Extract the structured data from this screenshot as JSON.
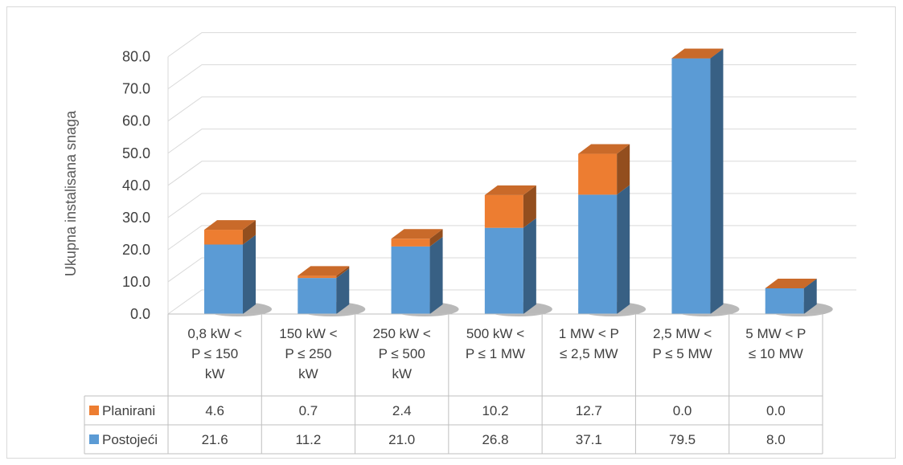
{
  "chart_data": {
    "type": "bar",
    "stacked": true,
    "three_d": true,
    "title": "",
    "ylabel": "Ukupna instalisana snaga",
    "xlabel": "",
    "ylim": [
      0,
      80
    ],
    "yticks": [
      "0.0",
      "10.0",
      "20.0",
      "30.0",
      "40.0",
      "50.0",
      "60.0",
      "70.0",
      "80.0"
    ],
    "categories": [
      [
        "0,8 kW <",
        "P ≤ 150",
        "kW"
      ],
      [
        "150 kW <",
        "P ≤ 250",
        "kW"
      ],
      [
        "250 kW <",
        "P ≤ 500",
        "kW"
      ],
      [
        "500 kW <",
        "P ≤ 1 MW"
      ],
      [
        "1 MW < P",
        "≤ 2,5 MW"
      ],
      [
        "2,5 MW <",
        "P ≤ 5 MW"
      ],
      [
        "5 MW < P",
        "≤ 10 MW"
      ]
    ],
    "series": [
      {
        "name": "Postojeći",
        "color": "#5b9bd5",
        "values": [
          21.6,
          11.2,
          21.0,
          26.8,
          37.1,
          79.5,
          8.0
        ],
        "labels": [
          "21.6",
          "11.2",
          "21.0",
          "26.8",
          "37.1",
          "79.5",
          "8.0"
        ]
      },
      {
        "name": "Planirani",
        "color": "#ed7d31",
        "values": [
          4.6,
          0.7,
          2.4,
          10.2,
          12.7,
          0.0,
          0.0
        ],
        "labels": [
          "4.6",
          "0.7",
          "2.4",
          "10.2",
          "12.7",
          "0.0",
          "0.0"
        ]
      }
    ],
    "table_row_order": [
      "Planirani",
      "Postojeći"
    ],
    "grid": true,
    "legend": "data-table"
  }
}
